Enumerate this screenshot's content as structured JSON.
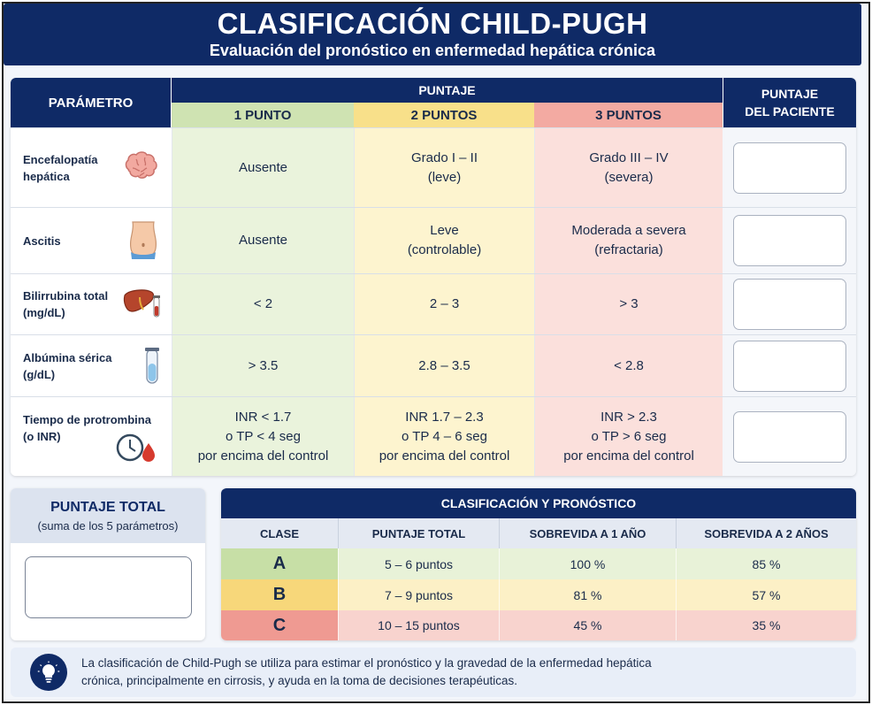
{
  "header": {
    "title": "CLASIFICACIÓN CHILD-PUGH",
    "subtitle": "Evaluación del pronóstico en enfermedad hepática crónica"
  },
  "main_table": {
    "param_header": "PARÁMETRO",
    "puntaje_header": "PUNTAJE",
    "col_headers": [
      "1 PUNTO",
      "2 PUNTOS",
      "3 PUNTOS"
    ],
    "patient_header_line1": "PUNTAJE",
    "patient_header_line2": "DEL PACIENTE",
    "rows": [
      {
        "param_line1": "Encefalopatía",
        "param_line2": "hepática",
        "icon": "brain-icon",
        "c1_line1": "Ausente",
        "c1_line2": "",
        "c1_line3": "",
        "c2_line1": "Grado I – II",
        "c2_line2": "(leve)",
        "c2_line3": "",
        "c3_line1": "Grado III – IV",
        "c3_line2": "(severa)",
        "c3_line3": ""
      },
      {
        "param_line1": "Ascitis",
        "param_line2": "",
        "icon": "abdomen-icon",
        "c1_line1": "Ausente",
        "c1_line2": "",
        "c1_line3": "",
        "c2_line1": "Leve",
        "c2_line2": "(controlable)",
        "c2_line3": "",
        "c3_line1": "Moderada a severa",
        "c3_line2": "(refractaria)",
        "c3_line3": ""
      },
      {
        "param_line1": "Bilirrubina total",
        "param_line2": "(mg/dL)",
        "icon": "liver-icon",
        "c1_line1": "< 2",
        "c1_line2": "",
        "c1_line3": "",
        "c2_line1": "2 – 3",
        "c2_line2": "",
        "c2_line3": "",
        "c3_line1": "> 3",
        "c3_line2": "",
        "c3_line3": ""
      },
      {
        "param_line1": "Albúmina sérica",
        "param_line2": "(g/dL)",
        "icon": "test-tube-icon",
        "c1_line1": "> 3.5",
        "c1_line2": "",
        "c1_line3": "",
        "c2_line1": "2.8 – 3.5",
        "c2_line2": "",
        "c2_line3": "",
        "c3_line1": "< 2.8",
        "c3_line2": "",
        "c3_line3": ""
      },
      {
        "param_line1": "Tiempo de protrombina",
        "param_line2": "(o INR)",
        "icon": "clock-drop-icon",
        "c1_line1": "INR < 1.7",
        "c1_line2": "o TP < 4 seg",
        "c1_line3": "por encima del control",
        "c2_line1": "INR 1.7 – 2.3",
        "c2_line2": "o TP 4 – 6 seg",
        "c2_line3": "por encima del control",
        "c3_line1": "INR > 2.3",
        "c3_line2": "o TP > 6 seg",
        "c3_line3": "por encima del control"
      }
    ]
  },
  "total": {
    "title": "PUNTAJE TOTAL",
    "subtitle": "(suma de los 5 parámetros)"
  },
  "classification": {
    "title": "CLASIFICACIÓN Y PRONÓSTICO",
    "headers": [
      "CLASE",
      "PUNTAJE TOTAL",
      "SOBREVIDA A 1 AÑO",
      "SOBREVIDA A 2 AÑOS"
    ],
    "rows": [
      {
        "clase": "A",
        "puntaje": "5 – 6 puntos",
        "s1": "100 %",
        "s2": "85 %"
      },
      {
        "clase": "B",
        "puntaje": "7 – 9 puntos",
        "s1": "81 %",
        "s2": "57 %"
      },
      {
        "clase": "C",
        "puntaje": "10 – 15 puntos",
        "s1": "45 %",
        "s2": "35 %"
      }
    ]
  },
  "note": {
    "icon": "lightbulb-icon",
    "line1": "La clasificación de Child-Pugh se utiliza para estimar el pronóstico y la gravedad de la enfermedad hepática",
    "line2": "crónica, principalmente en cirrosis, y ayuda en la toma de decisiones terapéuticas."
  },
  "colors": {
    "navy": "#0f2a66",
    "green": "#cfe3b2",
    "yellow": "#f8e08a",
    "red": "#f3aaa2"
  }
}
